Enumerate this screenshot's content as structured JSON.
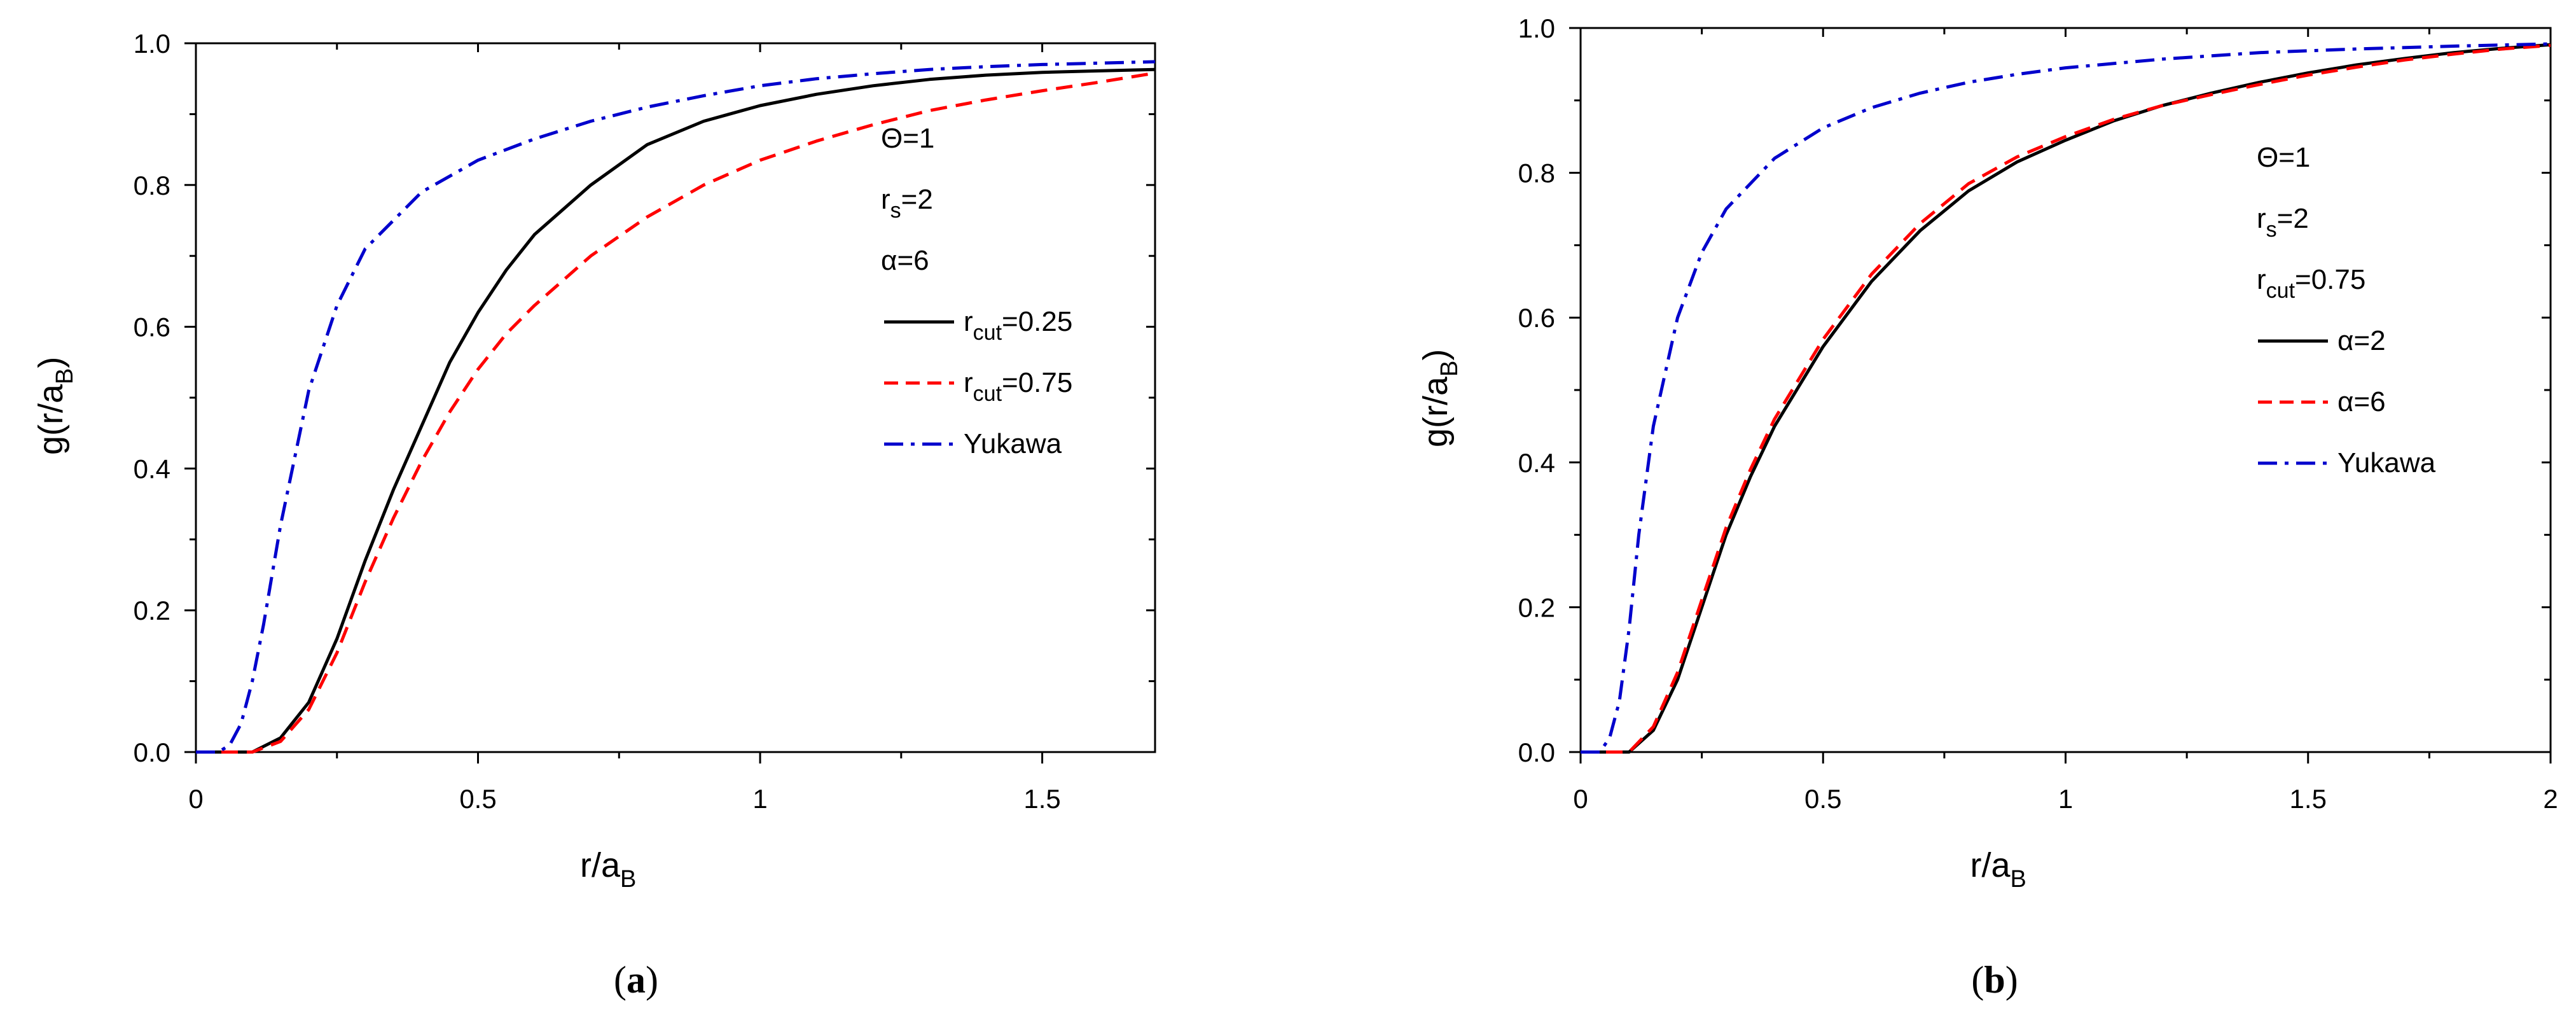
{
  "chart_data": [
    {
      "type": "line",
      "panel": "a",
      "panel_label": "a",
      "xlabel": "r/a",
      "xlabel_sub": "B",
      "ylabel": "g(r/a",
      "ylabel_sub": "B",
      "ylabel_close": ")",
      "xlim": [
        0,
        1.7
      ],
      "ylim": [
        0,
        1.0
      ],
      "xticks": [
        0,
        0.5,
        1,
        1.5
      ],
      "xtick_labels": [
        "0",
        "0.5",
        "1",
        "1.5"
      ],
      "yticks": [
        0,
        0.2,
        0.4,
        0.6,
        0.8,
        1.0
      ],
      "ytick_labels": [
        "0.0",
        "0.2",
        "0.4",
        "0.6",
        "0.8",
        "1.0"
      ],
      "params": [
        {
          "main": "Θ=1",
          "sub": ""
        },
        {
          "main": "r",
          "sub": "s",
          "rest": "=2"
        },
        {
          "main": "α=6",
          "sub": ""
        }
      ],
      "series": [
        {
          "name": "r",
          "name_sub": "cut",
          "name_rest": "=0.25",
          "color": "#000000",
          "dash": "solid",
          "x": [
            0,
            0.1,
            0.15,
            0.2,
            0.25,
            0.3,
            0.35,
            0.4,
            0.45,
            0.5,
            0.55,
            0.6,
            0.7,
            0.8,
            0.9,
            1.0,
            1.1,
            1.2,
            1.3,
            1.4,
            1.5,
            1.6,
            1.7
          ],
          "y": [
            0,
            0.0,
            0.02,
            0.07,
            0.16,
            0.27,
            0.37,
            0.46,
            0.55,
            0.62,
            0.68,
            0.73,
            0.8,
            0.857,
            0.89,
            0.912,
            0.928,
            0.94,
            0.949,
            0.955,
            0.959,
            0.961,
            0.963
          ]
        },
        {
          "name": "r",
          "name_sub": "cut",
          "name_rest": "=0.75",
          "color": "#ff0000",
          "dash": "dashed",
          "x": [
            0,
            0.1,
            0.15,
            0.2,
            0.25,
            0.3,
            0.35,
            0.4,
            0.45,
            0.5,
            0.55,
            0.6,
            0.7,
            0.8,
            0.9,
            1.0,
            1.1,
            1.2,
            1.3,
            1.4,
            1.5,
            1.6,
            1.7
          ],
          "y": [
            0,
            0.0,
            0.015,
            0.06,
            0.14,
            0.24,
            0.33,
            0.41,
            0.48,
            0.54,
            0.59,
            0.63,
            0.7,
            0.755,
            0.8,
            0.835,
            0.862,
            0.885,
            0.905,
            0.92,
            0.933,
            0.945,
            0.958
          ]
        },
        {
          "name": "Yukawa",
          "name_sub": "",
          "name_rest": "",
          "color": "#0000cc",
          "dash": "dashdot",
          "x": [
            0,
            0.04,
            0.06,
            0.08,
            0.1,
            0.12,
            0.15,
            0.2,
            0.25,
            0.3,
            0.4,
            0.5,
            0.6,
            0.7,
            0.8,
            0.9,
            1.0,
            1.1,
            1.2,
            1.3,
            1.4,
            1.5,
            1.6,
            1.7
          ],
          "y": [
            0,
            0.0,
            0.01,
            0.04,
            0.1,
            0.18,
            0.32,
            0.51,
            0.63,
            0.71,
            0.79,
            0.835,
            0.865,
            0.89,
            0.91,
            0.926,
            0.94,
            0.95,
            0.957,
            0.963,
            0.967,
            0.97,
            0.972,
            0.974
          ]
        }
      ]
    },
    {
      "type": "line",
      "panel": "b",
      "panel_label": "b",
      "xlabel": "r/a",
      "xlabel_sub": "B",
      "ylabel": "g(r/a",
      "ylabel_sub": "B",
      "ylabel_close": ")",
      "xlim": [
        0,
        2
      ],
      "ylim": [
        0,
        1.0
      ],
      "xticks": [
        0,
        0.5,
        1,
        1.5,
        2
      ],
      "xtick_labels": [
        "0",
        "0.5",
        "1",
        "1.5",
        "2"
      ],
      "yticks": [
        0,
        0.2,
        0.4,
        0.6,
        0.8,
        1.0
      ],
      "ytick_labels": [
        "0.0",
        "0.2",
        "0.4",
        "0.6",
        "0.8",
        "1.0"
      ],
      "params": [
        {
          "main": "Θ=1",
          "sub": ""
        },
        {
          "main": "r",
          "sub": "s",
          "rest": "=2"
        },
        {
          "main": "r",
          "sub": "cut",
          "rest": "=0.75"
        }
      ],
      "series": [
        {
          "name": "α=2",
          "name_sub": "",
          "name_rest": "",
          "color": "#000000",
          "dash": "solid",
          "x": [
            0,
            0.1,
            0.15,
            0.2,
            0.25,
            0.3,
            0.35,
            0.4,
            0.5,
            0.6,
            0.7,
            0.8,
            0.9,
            1.0,
            1.1,
            1.2,
            1.3,
            1.4,
            1.5,
            1.6,
            1.7,
            1.8,
            1.9,
            2.0
          ],
          "y": [
            0,
            0.0,
            0.03,
            0.1,
            0.2,
            0.3,
            0.38,
            0.45,
            0.56,
            0.65,
            0.72,
            0.775,
            0.815,
            0.845,
            0.872,
            0.893,
            0.91,
            0.925,
            0.938,
            0.949,
            0.958,
            0.966,
            0.972,
            0.977
          ]
        },
        {
          "name": "α=6",
          "name_sub": "",
          "name_rest": "",
          "color": "#ff0000",
          "dash": "dashed",
          "x": [
            0,
            0.1,
            0.15,
            0.2,
            0.25,
            0.3,
            0.35,
            0.4,
            0.5,
            0.6,
            0.7,
            0.8,
            0.9,
            1.0,
            1.1,
            1.2,
            1.3,
            1.4,
            1.5,
            1.6,
            1.7,
            1.8,
            1.9,
            2.0
          ],
          "y": [
            0,
            0.0,
            0.035,
            0.11,
            0.21,
            0.31,
            0.39,
            0.46,
            0.57,
            0.66,
            0.73,
            0.785,
            0.822,
            0.85,
            0.874,
            0.893,
            0.908,
            0.922,
            0.935,
            0.946,
            0.956,
            0.964,
            0.971,
            0.976
          ]
        },
        {
          "name": "Yukawa",
          "name_sub": "",
          "name_rest": "",
          "color": "#0000cc",
          "dash": "dashdot",
          "x": [
            0,
            0.04,
            0.06,
            0.08,
            0.1,
            0.12,
            0.15,
            0.2,
            0.25,
            0.3,
            0.4,
            0.5,
            0.6,
            0.7,
            0.8,
            0.9,
            1.0,
            1.2,
            1.4,
            1.6,
            1.8,
            2.0
          ],
          "y": [
            0,
            0.0,
            0.02,
            0.07,
            0.17,
            0.3,
            0.45,
            0.6,
            0.69,
            0.75,
            0.82,
            0.862,
            0.89,
            0.91,
            0.925,
            0.936,
            0.945,
            0.957,
            0.966,
            0.971,
            0.975,
            0.978
          ]
        }
      ]
    }
  ]
}
